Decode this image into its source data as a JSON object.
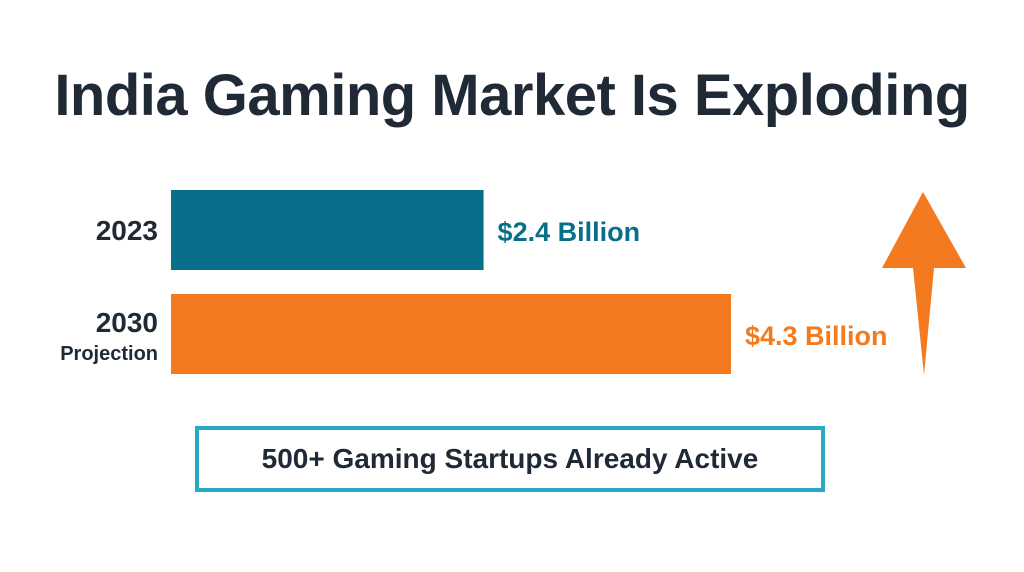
{
  "title": "India Gaming Market Is Exploding",
  "colors": {
    "bar_2023": "#086f8a",
    "bar_2030": "#f47a1f",
    "arrow": "#f47a1f",
    "callout_border": "#2aa8c4",
    "text_dark": "#1f2a36"
  },
  "callout": {
    "text": "500+ Gaming Startups Already Active"
  },
  "arrow_icon": "up-arrow-icon",
  "chart_data": {
    "type": "bar",
    "orientation": "horizontal",
    "title": "India Gaming Market Is Exploding",
    "categories": [
      "2023",
      "2030"
    ],
    "category_sublabels": [
      "",
      "Projection"
    ],
    "values": [
      2.4,
      4.3
    ],
    "value_labels": [
      "$2.4 Billion",
      "$4.3 Billion"
    ],
    "unit": "Billion USD",
    "bar_colors": [
      "#086f8a",
      "#f47a1f"
    ],
    "label_colors": [
      "#086f8a",
      "#f47a1f"
    ],
    "xlim": [
      0,
      4.3
    ],
    "grid": false
  }
}
